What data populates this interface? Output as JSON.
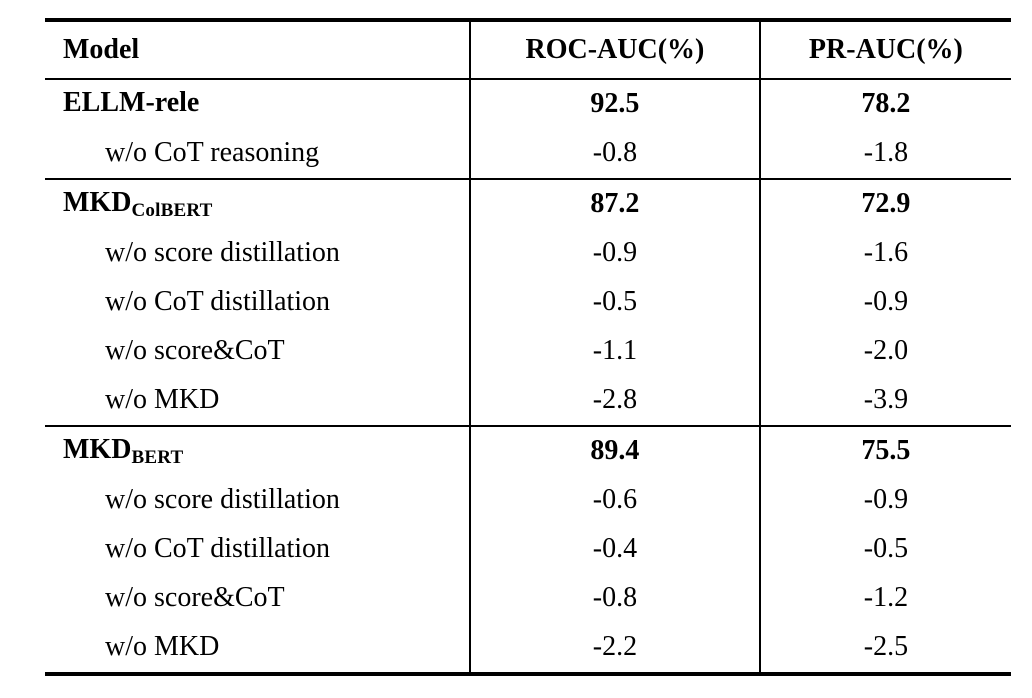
{
  "table": {
    "columns": [
      "Model",
      "ROC-AUC(%)",
      "PR-AUC(%)"
    ],
    "sections": [
      {
        "header": {
          "model": "ELLM-rele",
          "model_sub": "",
          "roc": "92.5",
          "pr": "78.2"
        },
        "rows": [
          {
            "model": "w/o CoT reasoning",
            "roc": "-0.8",
            "pr": "-1.8"
          }
        ]
      },
      {
        "header": {
          "model": "MKD",
          "model_sub": "ColBERT",
          "roc": "87.2",
          "pr": "72.9"
        },
        "rows": [
          {
            "model": "w/o score distillation",
            "roc": "-0.9",
            "pr": "-1.6"
          },
          {
            "model": "w/o CoT distillation",
            "roc": "-0.5",
            "pr": "-0.9"
          },
          {
            "model": "w/o score&CoT",
            "roc": "-1.1",
            "pr": "-2.0"
          },
          {
            "model": "w/o MKD",
            "roc": "-2.8",
            "pr": "-3.9"
          }
        ]
      },
      {
        "header": {
          "model": "MKD",
          "model_sub": "BERT",
          "roc": "89.4",
          "pr": "75.5"
        },
        "rows": [
          {
            "model": "w/o score distillation",
            "roc": "-0.6",
            "pr": "-0.9"
          },
          {
            "model": "w/o CoT distillation",
            "roc": "-0.4",
            "pr": "-0.5"
          },
          {
            "model": "w/o score&CoT",
            "roc": "-0.8",
            "pr": "-1.2"
          },
          {
            "model": "w/o MKD",
            "roc": "-2.2",
            "pr": "-2.5"
          }
        ]
      }
    ]
  }
}
